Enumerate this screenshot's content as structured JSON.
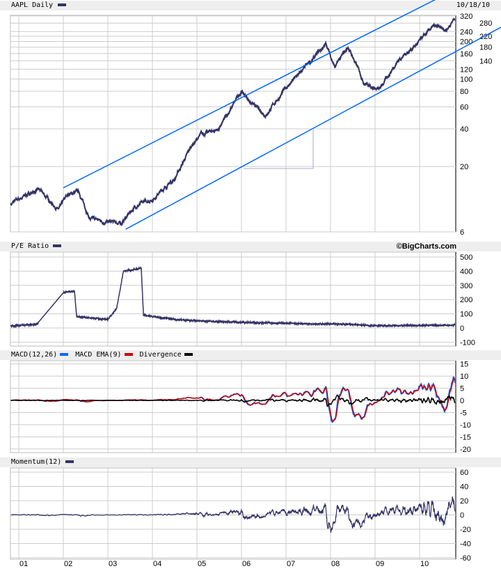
{
  "header": {
    "title": "AAPL Daily",
    "date": "10/18/10"
  },
  "pe_header": {
    "title": "P/E Ratio",
    "brand": "©BigCharts.com"
  },
  "macd_header": {
    "macd": "MACD(12,26)",
    "ema": "MACD EMA(9)",
    "div": "Divergence"
  },
  "mom_header": {
    "title": "Momentum(12)"
  },
  "colors": {
    "price": "#333366",
    "channel": "#0066ff",
    "macd": "#0066ff",
    "ema": "#cc0000",
    "div": "#000000",
    "grid": "#cccccc"
  },
  "chart_data": [
    {
      "type": "line",
      "title": "AAPL Daily",
      "yscale": "log",
      "ylim": [
        6,
        320
      ],
      "yticks": [
        "6",
        "20",
        "40",
        "60",
        "80",
        "100",
        "120",
        "140",
        "160",
        "180",
        "200",
        "220",
        "240",
        "280",
        "320"
      ],
      "xticks": [
        "01",
        "02",
        "03",
        "04",
        "05",
        "06",
        "07",
        "08",
        "09",
        "10"
      ],
      "x": [
        2000.82,
        2001.2,
        2001.45,
        2001.9,
        2002.1,
        2002.35,
        2002.6,
        2003.0,
        2003.3,
        2003.6,
        2004.0,
        2004.5,
        2004.9,
        2005.1,
        2005.5,
        2006.0,
        2006.3,
        2006.55,
        2007.0,
        2007.5,
        2007.9,
        2008.1,
        2008.4,
        2008.75,
        2009.1,
        2009.5,
        2010.0,
        2010.3,
        2010.6,
        2010.8
      ],
      "values": [
        10,
        12,
        13,
        9,
        12,
        12.5,
        7.6,
        7.2,
        7,
        9.5,
        11,
        16,
        30,
        36,
        40,
        80,
        60,
        52,
        85,
        130,
        190,
        125,
        180,
        95,
        82,
        140,
        200,
        260,
        250,
        310
      ],
      "channel_lines": [
        {
          "from": [
            2002.0,
            13.5
          ],
          "to": [
            2010.8,
            520
          ]
        },
        {
          "from": [
            2003.4,
            6.3
          ],
          "to": [
            2010.8,
            165
          ]
        }
      ]
    },
    {
      "type": "line",
      "title": "P/E Ratio",
      "ylim": [
        -100,
        500
      ],
      "yticks": [
        "500",
        "400",
        "300",
        "200",
        "100",
        "0",
        "-100"
      ],
      "x": [
        2000.82,
        2001.4,
        2002.0,
        2002.25,
        2002.3,
        2003.0,
        2003.2,
        2003.35,
        2003.75,
        2003.8,
        2004.5,
        2005.0,
        2006.0,
        2007.5,
        2008.5,
        2009.0,
        2010.8
      ],
      "values": [
        15,
        25,
        250,
        260,
        80,
        60,
        140,
        400,
        420,
        90,
        60,
        50,
        40,
        30,
        25,
        15,
        20
      ]
    },
    {
      "type": "line",
      "title": "MACD(12,26)",
      "ylim": [
        -20,
        15
      ],
      "yticks": [
        "15",
        "10",
        "5",
        "0",
        "-5",
        "-10",
        "-15",
        "-20"
      ],
      "series": [
        {
          "name": "MACD EMA(9)"
        },
        {
          "name": "Divergence"
        }
      ]
    },
    {
      "type": "line",
      "title": "Momentum(12)",
      "ylim": [
        -60,
        60
      ],
      "yticks": [
        "60",
        "40",
        "20",
        "0",
        "-20",
        "-40",
        "-60"
      ]
    }
  ]
}
